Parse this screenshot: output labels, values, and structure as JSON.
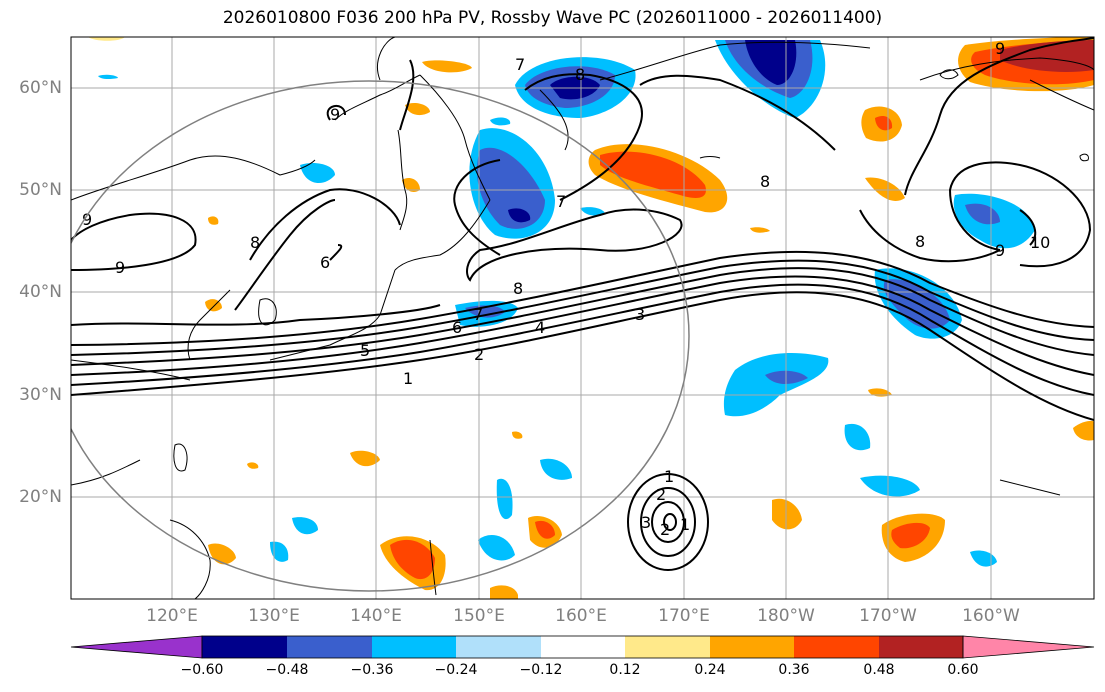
{
  "title": "2026010800 F036 200 hPa PV, Rossby Wave PC (2026011000 - 2026011400)",
  "map": {
    "projection": "PlateCarree",
    "lon_range_east": [
      110,
      210
    ],
    "lat_range": [
      10,
      65
    ],
    "grid_lons": [
      120,
      130,
      140,
      150,
      160,
      170,
      180,
      190,
      200
    ],
    "grid_lats": [
      20,
      30,
      40,
      50,
      60
    ],
    "lat_labels": [
      "20°N",
      "30°N",
      "40°N",
      "50°N",
      "60°N"
    ],
    "lon_labels": [
      "120°E",
      "130°E",
      "140°E",
      "150°E",
      "160°E",
      "170°E",
      "180°W",
      "170°W",
      "160°W"
    ],
    "circle_center": [
      139.5,
      40.5
    ],
    "circle_radius_deg": 30,
    "pv_contour_labels": [
      "9",
      "9",
      "9",
      "8",
      "8",
      "8",
      "9",
      "6",
      "7",
      "7",
      "8",
      "8",
      "9",
      "10",
      "7",
      "6",
      "5",
      "4",
      "3",
      "2",
      "1",
      "2",
      "1",
      "3",
      "2",
      "1"
    ]
  },
  "colorbar": {
    "ticks": [
      "−0.60",
      "−0.48",
      "−0.36",
      "−0.24",
      "−0.12",
      "0.12",
      "0.24",
      "0.36",
      "0.48",
      "0.60"
    ],
    "colors": [
      "#9932cc",
      "#00008b",
      "#3a5fcd",
      "#00bfff",
      "#b0e0fa",
      "#ffffff",
      "#ffe98a",
      "#ffa500",
      "#ff4500",
      "#b22222",
      "#ff85a8"
    ]
  },
  "colors": {
    "negative_strong": "#00008b",
    "negative_mid": "#3a5fcd",
    "negative_weak": "#00bfff",
    "negative_light": "#b0e0fa",
    "positive_light": "#ffe98a",
    "positive_weak": "#ffa500",
    "positive_mid": "#ff4500",
    "positive_strong": "#b22222",
    "grid": "#a9a9a9",
    "contour": "#000000"
  }
}
